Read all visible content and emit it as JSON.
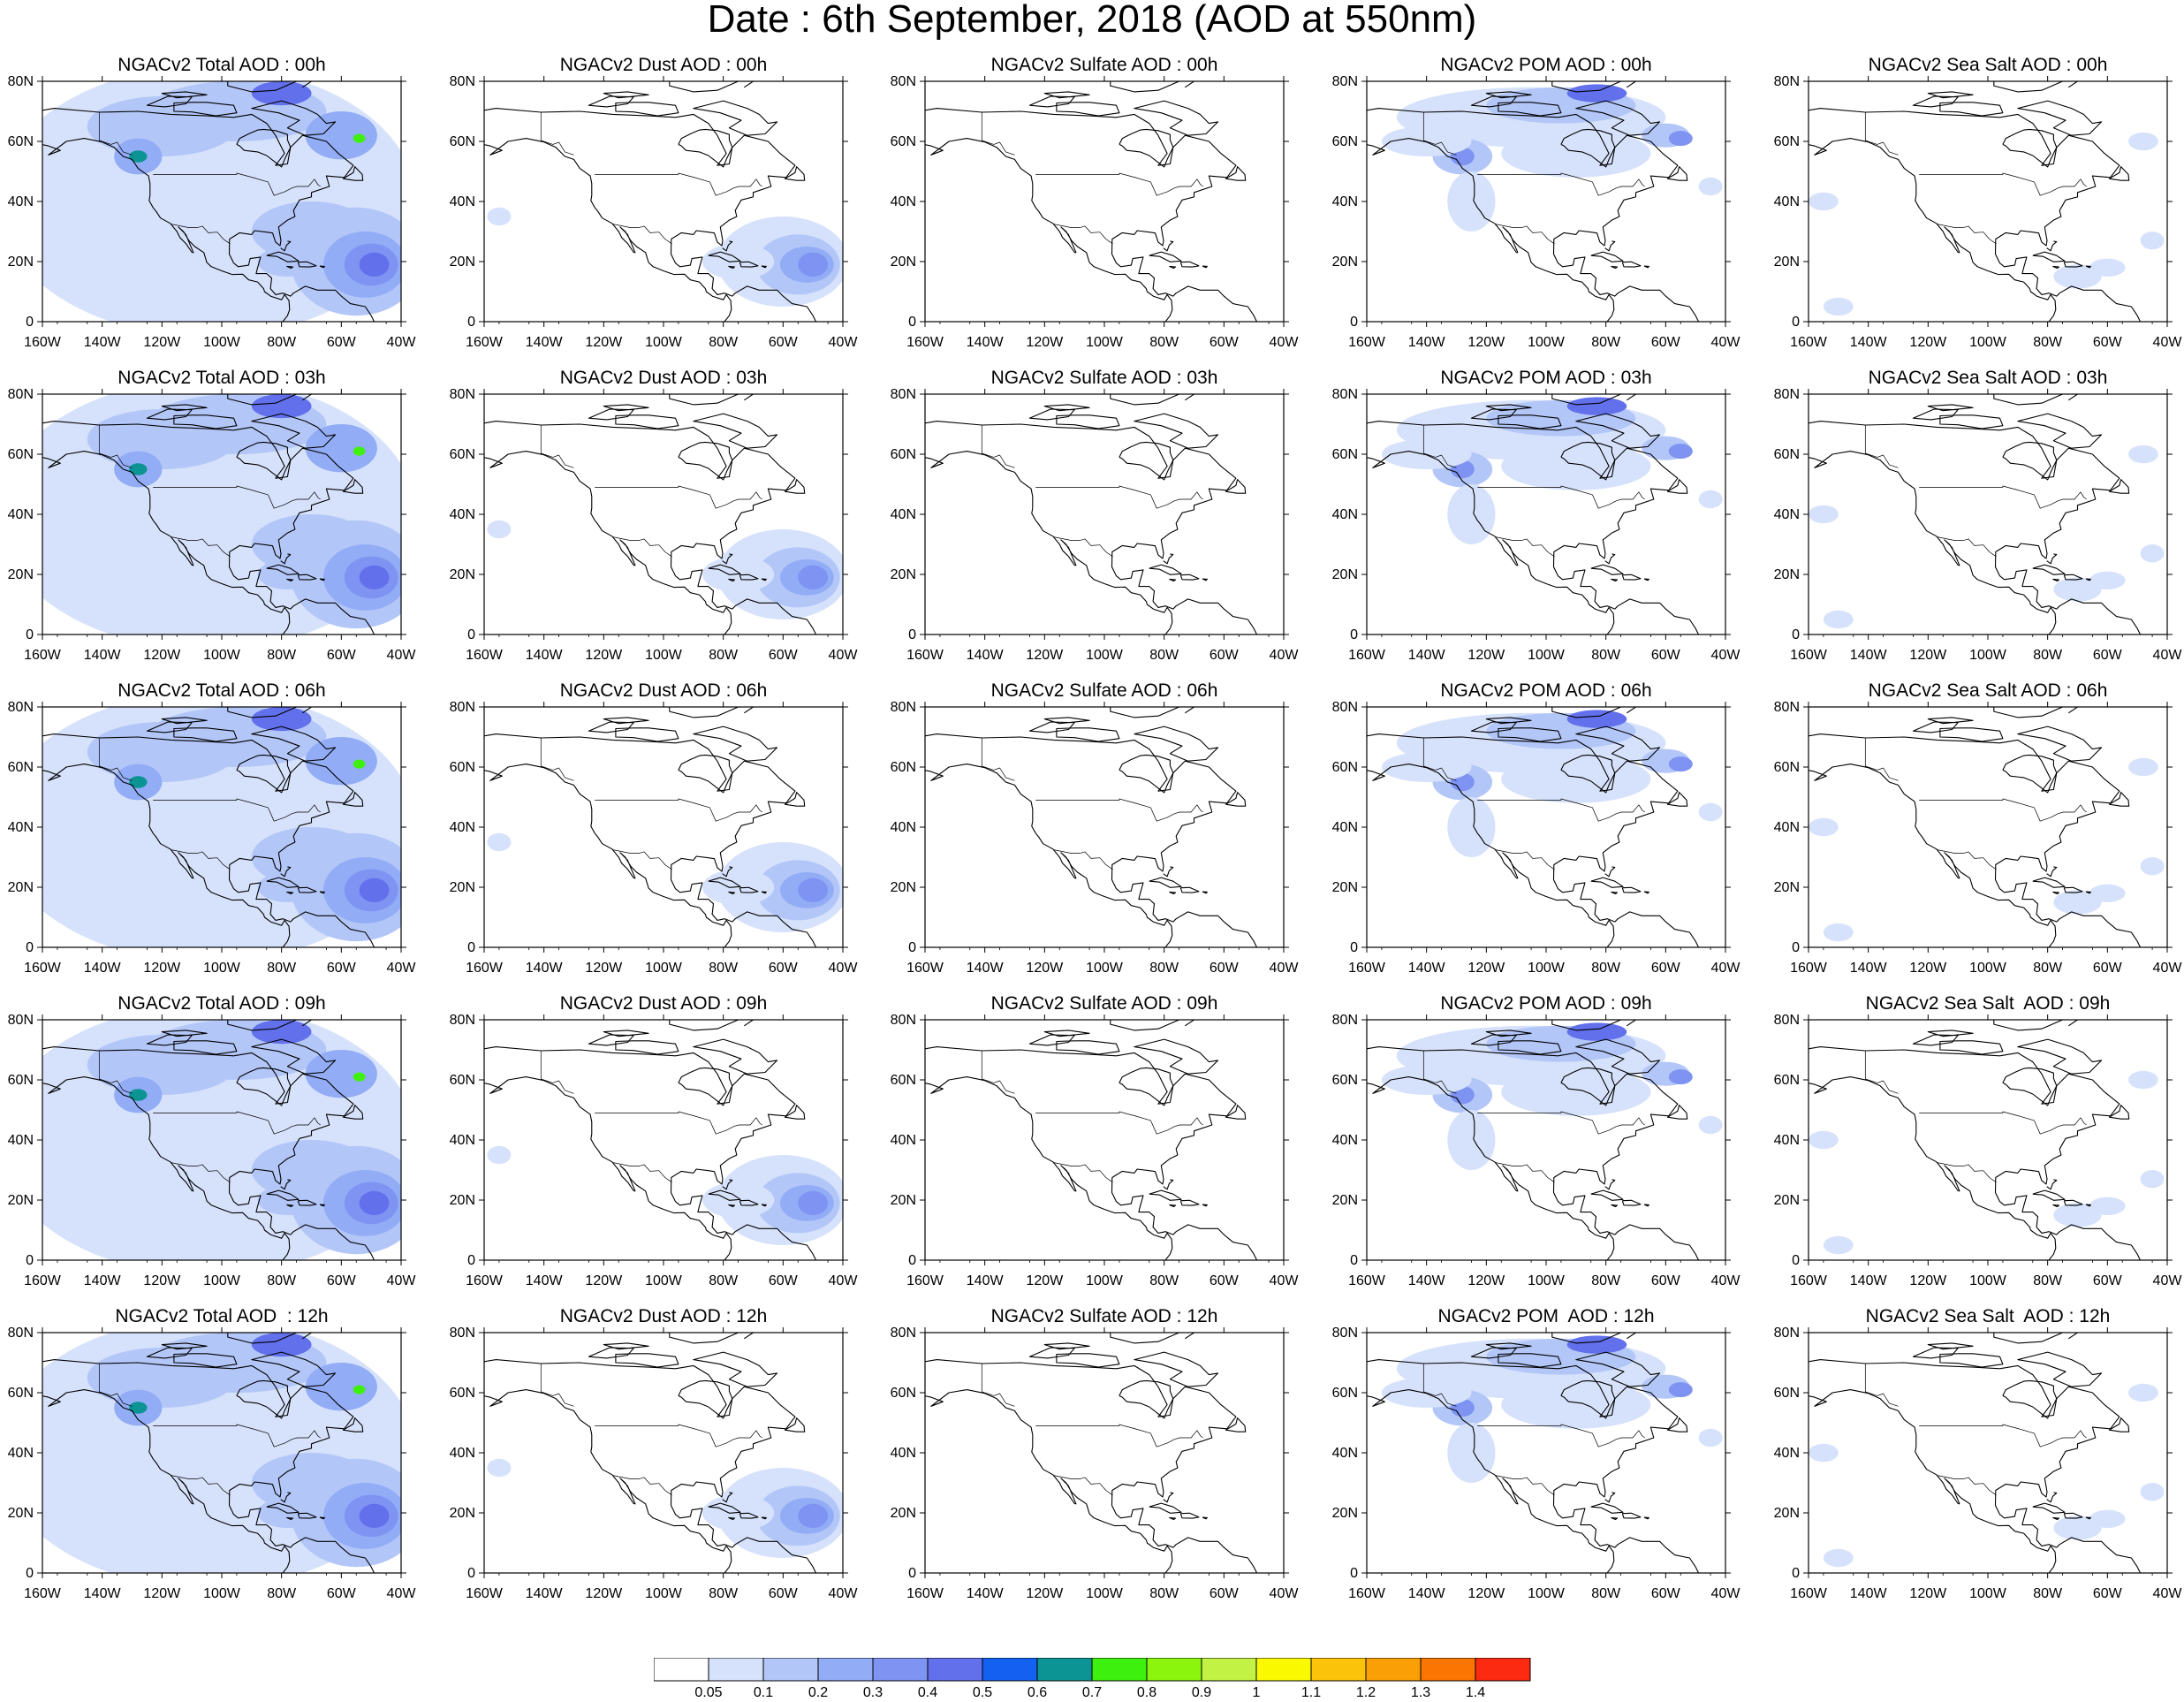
{
  "figure": {
    "title": "Date : 6th September, 2018 (AOD at 550nm)"
  },
  "axes": {
    "lat_labels": [
      "80N",
      "60N",
      "40N",
      "20N",
      "0"
    ],
    "lon_labels": [
      "160W",
      "140W",
      "120W",
      "100W",
      "80W",
      "60W",
      "40W"
    ],
    "lat_range": [
      0,
      80
    ],
    "lon_range": [
      -160,
      -40
    ]
  },
  "panels": [
    [
      {
        "title": "NGACv2 Total AOD : 00h",
        "species": "total"
      },
      {
        "title": "NGACv2 Dust AOD : 00h",
        "species": "dust"
      },
      {
        "title": "NGACv2 Sulfate AOD : 00h",
        "species": "sulfate"
      },
      {
        "title": "NGACv2 POM AOD : 00h",
        "species": "pom"
      },
      {
        "title": "NGACv2 Sea Salt AOD : 00h",
        "species": "seasalt"
      }
    ],
    [
      {
        "title": "NGACv2 Total AOD : 03h",
        "species": "total"
      },
      {
        "title": "NGACv2 Dust AOD : 03h",
        "species": "dust"
      },
      {
        "title": "NGACv2 Sulfate AOD : 03h",
        "species": "sulfate"
      },
      {
        "title": "NGACv2 POM AOD : 03h",
        "species": "pom"
      },
      {
        "title": "NGACv2 Sea Salt AOD : 03h",
        "species": "seasalt"
      }
    ],
    [
      {
        "title": "NGACv2 Total AOD : 06h",
        "species": "total"
      },
      {
        "title": "NGACv2 Dust AOD : 06h",
        "species": "dust"
      },
      {
        "title": "NGACv2 Sulfate AOD : 06h",
        "species": "sulfate"
      },
      {
        "title": "NGACv2 POM AOD : 06h",
        "species": "pom"
      },
      {
        "title": "NGACv2 Sea Salt AOD : 06h",
        "species": "seasalt"
      }
    ],
    [
      {
        "title": "NGACv2 Total AOD : 09h",
        "species": "total"
      },
      {
        "title": "NGACv2 Dust AOD : 09h",
        "species": "dust"
      },
      {
        "title": "NGACv2 Sulfate AOD : 09h",
        "species": "sulfate"
      },
      {
        "title": "NGACv2 POM AOD : 09h",
        "species": "pom"
      },
      {
        "title": "NGACv2 Sea Salt  AOD : 09h",
        "species": "seasalt"
      }
    ],
    [
      {
        "title": "NGACv2 Total AOD  : 12h",
        "species": "total"
      },
      {
        "title": "NGACv2 Dust AOD : 12h",
        "species": "dust"
      },
      {
        "title": "NGACv2 Sulfate AOD : 12h",
        "species": "sulfate"
      },
      {
        "title": "NGACv2 POM  AOD : 12h",
        "species": "pom"
      },
      {
        "title": "NGACv2 Sea Salt  AOD : 12h",
        "species": "seasalt"
      }
    ]
  ],
  "colorbar": {
    "colors": [
      "#ffffff",
      "#d6e2fb",
      "#b3c6f8",
      "#92acf6",
      "#7e93f2",
      "#6270ec",
      "#1460f0",
      "#0c9494",
      "#3ef00e",
      "#8cf50d",
      "#c2f244",
      "#fbf900",
      "#fbc40a",
      "#fb9f06",
      "#fb7503",
      "#fb2a10"
    ],
    "labels": [
      "0.05",
      "0.1",
      "0.2",
      "0.3",
      "0.4",
      "0.5",
      "0.6",
      "0.7",
      "0.8",
      "0.9",
      "1",
      "1.1",
      "1.2",
      "1.3",
      "1.4"
    ]
  }
}
